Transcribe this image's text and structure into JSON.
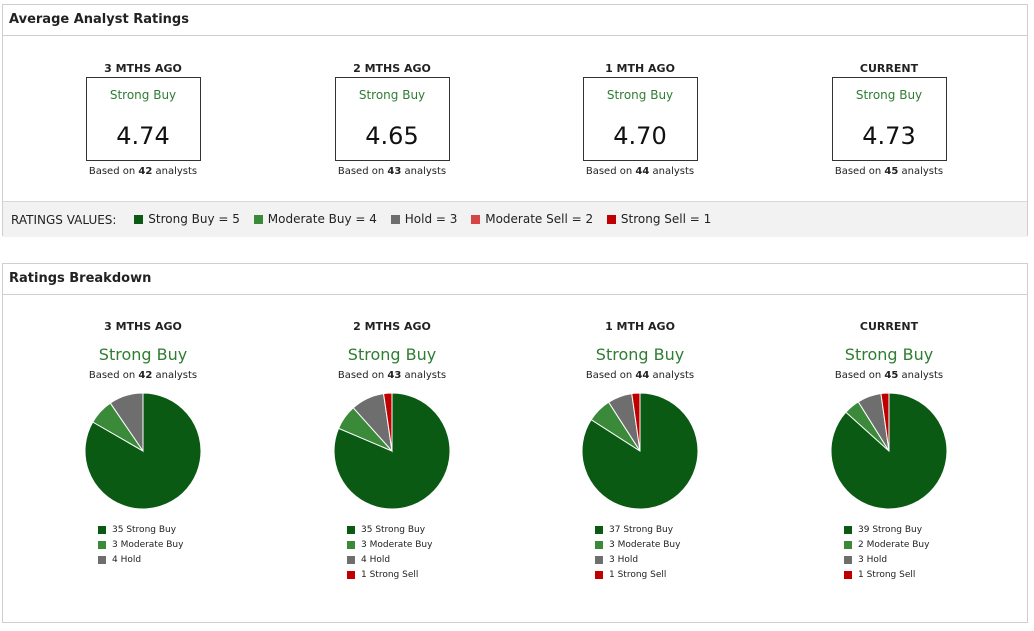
{
  "avg_panel": {
    "title": "Average Analyst Ratings",
    "periods": [
      {
        "label": "3 MTHS AGO",
        "rating": "Strong Buy",
        "score": "4.74",
        "based_prefix": "Based on",
        "analysts": "42",
        "based_suffix": "analysts"
      },
      {
        "label": "2 MTHS AGO",
        "rating": "Strong Buy",
        "score": "4.65",
        "based_prefix": "Based on",
        "analysts": "43",
        "based_suffix": "analysts"
      },
      {
        "label": "1 MTH AGO",
        "rating": "Strong Buy",
        "score": "4.70",
        "based_prefix": "Based on",
        "analysts": "44",
        "based_suffix": "analysts"
      },
      {
        "label": "CURRENT",
        "rating": "Strong Buy",
        "score": "4.73",
        "based_prefix": "Based on",
        "analysts": "45",
        "based_suffix": "analysts"
      }
    ],
    "values_label": "RATINGS VALUES:",
    "values": [
      {
        "text": "Strong Buy = 5",
        "color": "#0a5a14"
      },
      {
        "text": "Moderate Buy = 4",
        "color": "#3a8a3a"
      },
      {
        "text": "Hold = 3",
        "color": "#6e6e6e"
      },
      {
        "text": "Moderate Sell = 2",
        "color": "#d64545"
      },
      {
        "text": "Strong Sell = 1",
        "color": "#c00000"
      }
    ]
  },
  "breakdown_panel": {
    "title": "Ratings Breakdown"
  },
  "chart_data": [
    {
      "type": "pie",
      "title": "3 MTHS AGO",
      "subtitle": "Strong Buy",
      "note_prefix": "Based on",
      "note_count": "42",
      "note_suffix": "analysts",
      "categories": [
        "Strong Buy",
        "Moderate Buy",
        "Hold"
      ],
      "values": [
        35,
        3,
        4
      ],
      "legend": [
        "35 Strong Buy",
        "3 Moderate Buy",
        "4 Hold"
      ],
      "colors": [
        "#0a5a14",
        "#3a8a3a",
        "#6e6e6e"
      ]
    },
    {
      "type": "pie",
      "title": "2 MTHS AGO",
      "subtitle": "Strong Buy",
      "note_prefix": "Based on",
      "note_count": "43",
      "note_suffix": "analysts",
      "categories": [
        "Strong Buy",
        "Moderate Buy",
        "Hold",
        "Strong Sell"
      ],
      "values": [
        35,
        3,
        4,
        1
      ],
      "legend": [
        "35 Strong Buy",
        "3 Moderate Buy",
        "4 Hold",
        "1 Strong Sell"
      ],
      "colors": [
        "#0a5a14",
        "#3a8a3a",
        "#6e6e6e",
        "#c00000"
      ]
    },
    {
      "type": "pie",
      "title": "1 MTH AGO",
      "subtitle": "Strong Buy",
      "note_prefix": "Based on",
      "note_count": "44",
      "note_suffix": "analysts",
      "categories": [
        "Strong Buy",
        "Moderate Buy",
        "Hold",
        "Strong Sell"
      ],
      "values": [
        37,
        3,
        3,
        1
      ],
      "legend": [
        "37 Strong Buy",
        "3 Moderate Buy",
        "3 Hold",
        "1 Strong Sell"
      ],
      "colors": [
        "#0a5a14",
        "#3a8a3a",
        "#6e6e6e",
        "#c00000"
      ]
    },
    {
      "type": "pie",
      "title": "CURRENT",
      "subtitle": "Strong Buy",
      "note_prefix": "Based on",
      "note_count": "45",
      "note_suffix": "analysts",
      "categories": [
        "Strong Buy",
        "Moderate Buy",
        "Hold",
        "Strong Sell"
      ],
      "values": [
        39,
        2,
        3,
        1
      ],
      "legend": [
        "39 Strong Buy",
        "2 Moderate Buy",
        "3 Hold",
        "1 Strong Sell"
      ],
      "colors": [
        "#0a5a14",
        "#3a8a3a",
        "#6e6e6e",
        "#c00000"
      ]
    }
  ]
}
